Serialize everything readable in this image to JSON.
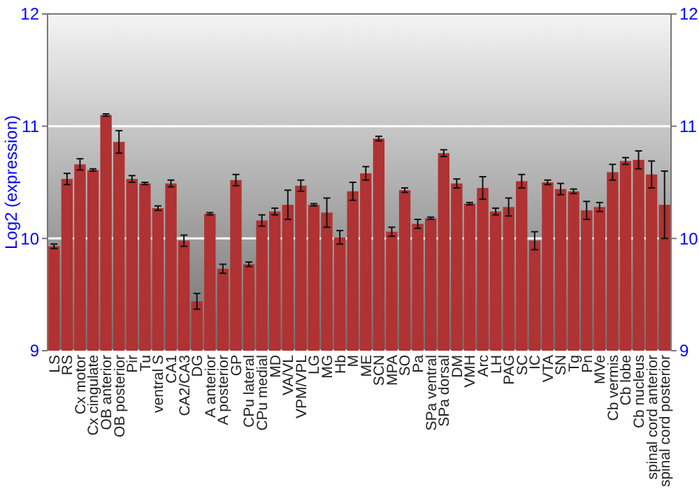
{
  "chart_data": {
    "type": "bar",
    "ylabel": "Log2 (expression)",
    "categories": [
      "LS",
      "RS",
      "Cx motor",
      "Cx cingulate",
      "OB anterior",
      "OB posterior",
      "Pir",
      "Tu",
      "ventral S",
      "CA1",
      "CA2/CA3",
      "DG",
      "A anterior",
      "A posterior",
      "GP",
      "CPu lateral",
      "CPu medial",
      "MD",
      "VA/VL",
      "VPM/VPL",
      "LG",
      "MG",
      "Hb",
      "M",
      "ME",
      "SCN",
      "MPA",
      "SO",
      "Pa",
      "SPa ventral",
      "SPa dorsal",
      "DM",
      "VMH",
      "Arc",
      "LH",
      "PAG",
      "SC",
      "IC",
      "VTA",
      "SN",
      "Tg",
      "Pn",
      "MVe",
      "Cb vermis",
      "Cb lobe",
      "Cb nucleus",
      "spinal cord anterior",
      "spinal cord posterior"
    ],
    "values": [
      9.93,
      10.53,
      10.66,
      10.61,
      11.1,
      10.86,
      10.53,
      10.49,
      10.27,
      10.49,
      9.98,
      9.44,
      10.22,
      9.73,
      10.52,
      9.77,
      10.16,
      10.24,
      10.3,
      10.47,
      10.3,
      10.23,
      10.01,
      10.42,
      10.58,
      10.89,
      10.06,
      10.43,
      10.13,
      10.18,
      10.76,
      10.49,
      10.31,
      10.45,
      10.24,
      10.28,
      10.51,
      9.98,
      10.5,
      10.44,
      10.42,
      10.25,
      10.28,
      10.59,
      10.69,
      10.7,
      10.57,
      10.3
    ],
    "errors": [
      0.02,
      0.05,
      0.05,
      0.01,
      0.01,
      0.1,
      0.03,
      0.01,
      0.02,
      0.03,
      0.05,
      0.07,
      0.01,
      0.04,
      0.05,
      0.02,
      0.05,
      0.03,
      0.13,
      0.05,
      0.01,
      0.13,
      0.06,
      0.08,
      0.06,
      0.02,
      0.04,
      0.02,
      0.04,
      0.01,
      0.03,
      0.04,
      0.01,
      0.1,
      0.03,
      0.08,
      0.06,
      0.08,
      0.02,
      0.05,
      0.02,
      0.08,
      0.04,
      0.07,
      0.03,
      0.08,
      0.12,
      0.3
    ],
    "color": "#b03232",
    "ylim": [
      9,
      12
    ],
    "yticks": [
      9,
      10,
      11,
      12
    ],
    "y2lim": [
      9,
      12
    ],
    "y2ticks": [
      9,
      10,
      11,
      12
    ],
    "grid": "y"
  }
}
